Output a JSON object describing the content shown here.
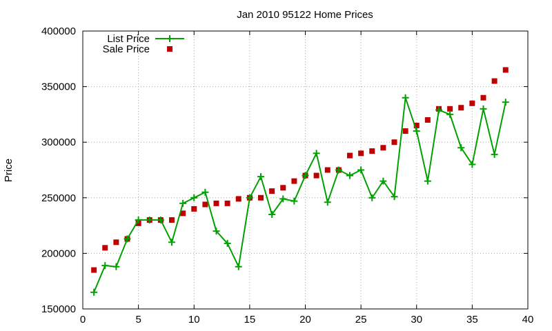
{
  "chart_data": {
    "type": "line",
    "title": "Jan 2010 95122 Home Prices",
    "xlabel": "",
    "ylabel": "Price",
    "xlim": [
      0,
      40
    ],
    "ylim": [
      150000,
      400000
    ],
    "xticks": [
      0,
      5,
      10,
      15,
      20,
      25,
      30,
      35,
      40
    ],
    "yticks": [
      150000,
      200000,
      250000,
      300000,
      350000,
      400000
    ],
    "grid": true,
    "legend_position": "top-left",
    "x": [
      1,
      2,
      3,
      4,
      5,
      6,
      7,
      8,
      9,
      10,
      11,
      12,
      13,
      14,
      15,
      16,
      17,
      18,
      19,
      20,
      21,
      22,
      23,
      24,
      25,
      26,
      27,
      28,
      29,
      30,
      31,
      32,
      33,
      34,
      35,
      36,
      37,
      38
    ],
    "series": [
      {
        "name": "List Price",
        "style": "line-with-plus-markers",
        "color": "#00a000",
        "values": [
          165000,
          189000,
          188000,
          213000,
          230000,
          230000,
          230000,
          210000,
          245000,
          250000,
          255000,
          220000,
          209000,
          188000,
          250000,
          269000,
          235000,
          249000,
          247000,
          270000,
          290000,
          246000,
          275000,
          270000,
          275000,
          250000,
          265000,
          251000,
          340000,
          310000,
          265000,
          329000,
          325000,
          295000,
          280000,
          330000,
          289000,
          336000
        ]
      },
      {
        "name": "Sale Price",
        "style": "square-markers",
        "color": "#c00000",
        "values": [
          185000,
          205000,
          210000,
          213000,
          227000,
          230000,
          230000,
          230000,
          236000,
          240000,
          244000,
          245000,
          245000,
          249000,
          250000,
          250000,
          256000,
          259000,
          265000,
          270000,
          270000,
          275000,
          275000,
          288000,
          290000,
          292000,
          295000,
          300000,
          310000,
          315000,
          320000,
          330000,
          330000,
          331000,
          335000,
          340000,
          355000,
          365000
        ]
      }
    ]
  }
}
